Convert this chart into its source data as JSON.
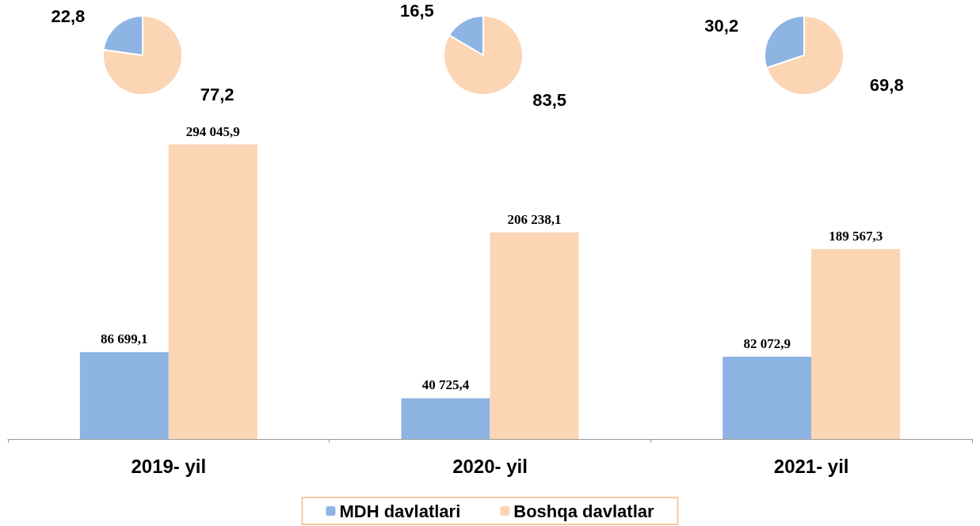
{
  "chart_data": [
    {
      "type": "bar",
      "categories": [
        "2019- yil",
        "2020- yil",
        "2021- yil"
      ],
      "series": [
        {
          "name": "MDH davlatlari",
          "color": "#8db4e2",
          "values": [
            86699.1,
            40725.4,
            82072.9
          ],
          "value_labels": [
            "86 699,1",
            "40 725,4",
            "82 072,9"
          ]
        },
        {
          "name": "Boshqa davlatlar",
          "color": "#fcd5b4",
          "values": [
            294045.9,
            206238.1,
            189567.3
          ],
          "value_labels": [
            "294 045,9",
            "206 238,1",
            "189 567,3"
          ]
        }
      ],
      "legend": "bottom"
    },
    {
      "type": "pie",
      "categories": [
        null,
        null
      ],
      "values": [
        22.8,
        77.2
      ],
      "colors": [
        "#8db4e2",
        "#fcd5b4"
      ],
      "value_labels": [
        "22,8",
        "77,2"
      ]
    },
    {
      "type": "pie",
      "categories": [
        null,
        null
      ],
      "values": [
        16.5,
        83.5
      ],
      "colors": [
        "#8db4e2",
        "#fcd5b4"
      ],
      "value_labels": [
        "16,5",
        "83,5"
      ]
    },
    {
      "type": "pie",
      "categories": [
        null,
        null
      ],
      "values": [
        30.2,
        69.8
      ],
      "colors": [
        "#8db4e2",
        "#fcd5b4"
      ],
      "value_labels": [
        "30,2",
        "69,8"
      ]
    }
  ]
}
